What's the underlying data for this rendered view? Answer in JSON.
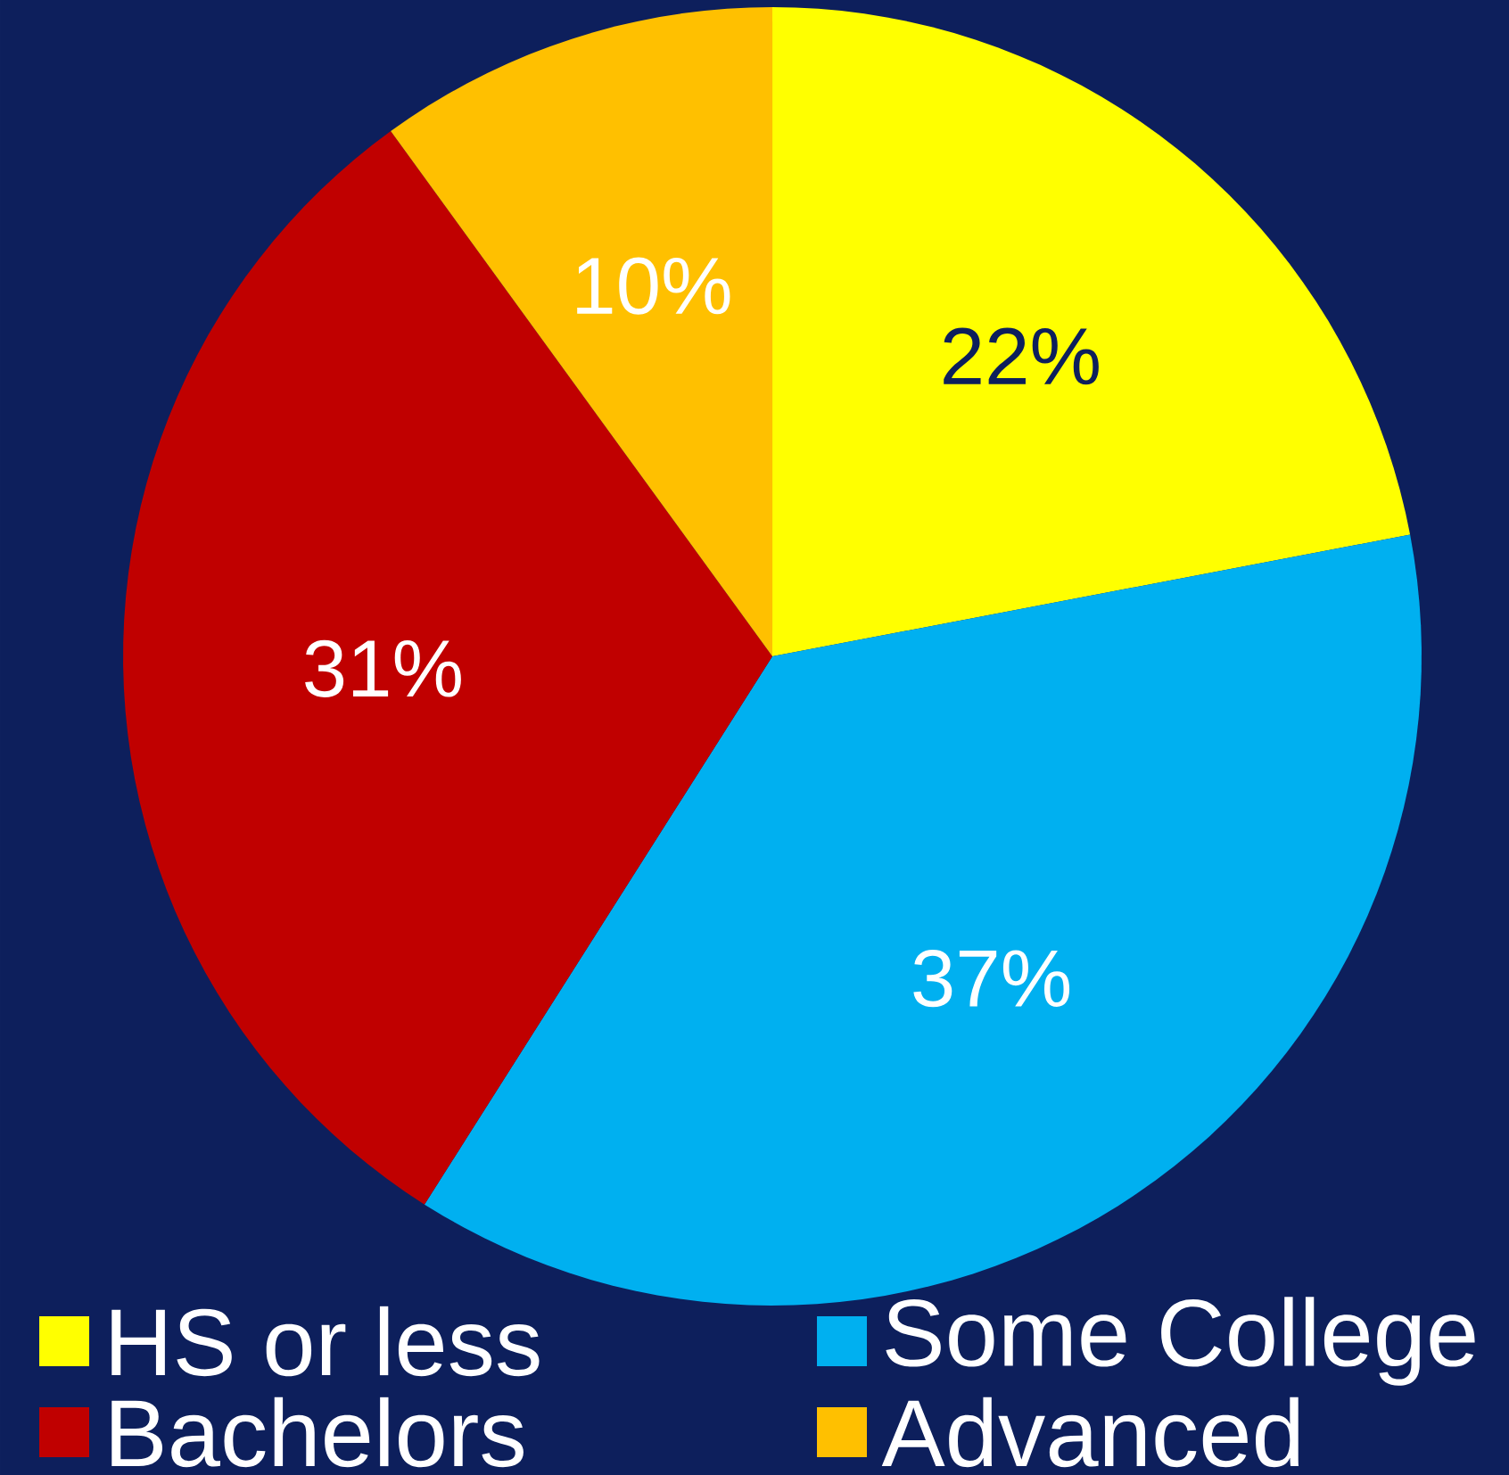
{
  "chart_data": {
    "type": "pie",
    "categories": [
      "HS or less",
      "Some College",
      "Bachelors",
      "Advanced"
    ],
    "values": [
      22,
      37,
      31,
      10
    ],
    "colors": [
      "#ffff00",
      "#00b0f0",
      "#c00000",
      "#ffc000"
    ],
    "value_labels": [
      "22%",
      "37%",
      "31%",
      "10%"
    ],
    "legend": "bottom"
  }
}
